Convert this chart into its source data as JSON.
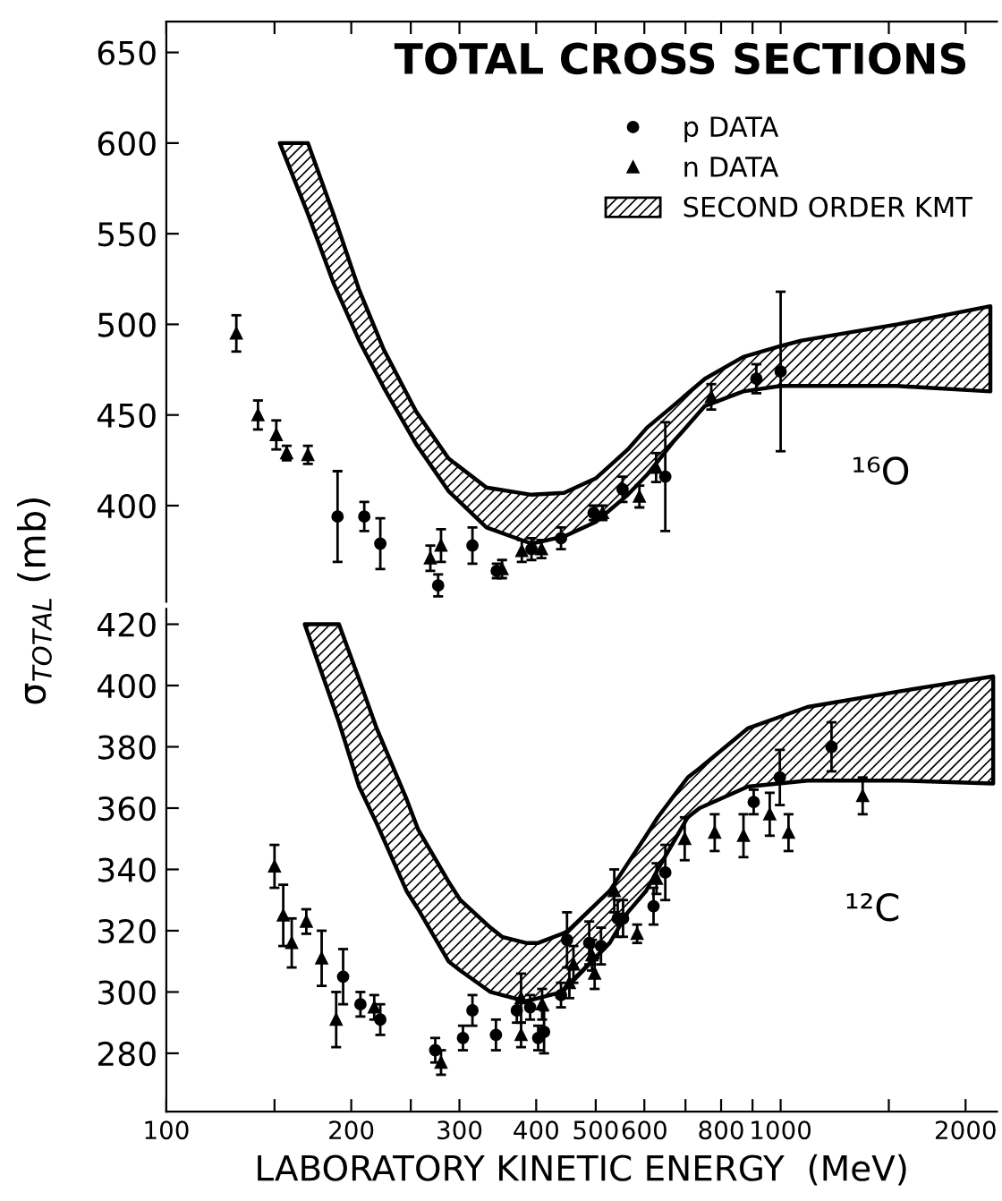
{
  "chart_data": [
    {
      "type": "scatter",
      "title": "TOTAL CROSS SECTIONS",
      "ylabel": "σ$_{TOTAL}$ (mb)",
      "annotations": [
        "¹⁶O"
      ],
      "log": "x",
      "tick_labels": "y",
      "legend": "top right",
      "xlim": [
        100,
        2250
      ],
      "xticks": [
        100,
        {
          "value": 150,
          "label": null
        },
        200,
        {
          "value": 250,
          "label": null
        },
        300,
        400,
        500,
        600,
        {
          "value": 700,
          "label": null
        },
        800,
        {
          "value": 900,
          "label": null
        },
        1000,
        {
          "value": 1500,
          "label": null
        },
        2000
      ],
      "ylim": [
        347,
        667
      ],
      "yticks": [
        400,
        450,
        500,
        550,
        600,
        650
      ],
      "series": [
        {
          "name": "p DATA",
          "type": "scatter",
          "marker": "circle",
          "color": "#000000",
          "x": [
            190,
            210,
            223,
            277,
            315,
            345,
            393,
            439,
            496,
            553,
            649,
            913,
            1000
          ],
          "values": [
            394,
            394,
            379,
            356,
            378,
            364,
            376,
            382,
            396,
            409,
            416,
            470,
            474
          ],
          "errors": [
            25,
            8,
            14,
            6,
            10,
            4,
            6,
            6,
            4,
            7,
            30,
            8,
            44
          ]
        },
        {
          "name": "n DATA",
          "type": "scatter",
          "marker": "triangle",
          "color": "#000000",
          "x": [
            130,
            141,
            151,
            157,
            170,
            269,
            280,
            352,
            379,
            408,
            513,
            589,
            627,
            771
          ],
          "values": [
            495,
            450,
            439,
            429,
            428,
            371,
            378,
            365,
            375,
            376,
            396,
            405,
            421,
            460
          ],
          "errors": [
            10,
            8,
            8,
            4,
            5,
            7,
            9,
            5,
            6,
            5,
            4,
            6,
            8,
            7
          ]
        },
        {
          "name": "SECOND ORDER KMT",
          "type": "area",
          "color": "#000000",
          "x": [
            153,
            170,
            187,
            206,
            226,
            255,
            288,
            332,
            393,
            444,
            500,
            564,
            606,
            668,
            753,
            869,
            1000,
            1080,
            1550,
            2195
          ],
          "values": [
            null,
            null,
            null,
            null,
            null,
            null,
            null,
            null,
            null,
            null,
            null,
            null,
            null,
            null,
            null,
            null,
            null,
            null,
            null,
            null
          ],
          "lower": [
            600,
            561,
            523,
            491,
            465,
            434,
            408,
            388,
            379,
            383,
            391,
            406,
            417,
            435,
            455,
            463,
            466,
            466,
            466,
            463
          ],
          "upper": [
            600,
            600,
            561,
            519,
            486,
            452,
            426,
            410,
            406,
            407,
            415,
            431,
            443,
            455,
            470,
            482,
            488,
            491,
            500,
            510
          ]
        }
      ]
    },
    {
      "type": "scatter",
      "xlabel": "LABORATORY KINETIC ENERGY  (MeV)",
      "annotations": [
        "¹²C"
      ],
      "log": "x",
      "xlim": [
        100,
        2250
      ],
      "xticks": [
        100,
        {
          "value": 150,
          "label": null
        },
        200,
        {
          "value": 250,
          "label": null
        },
        300,
        400,
        500,
        600,
        {
          "value": 700,
          "label": null
        },
        800,
        {
          "value": 900,
          "label": null
        },
        1000,
        {
          "value": 1500,
          "label": null
        },
        2000
      ],
      "ylim": [
        261,
        425
      ],
      "yticks": [
        280,
        300,
        320,
        340,
        360,
        380,
        400,
        420
      ],
      "series": [
        {
          "type": "scatter",
          "marker": "circle",
          "color": "#000000",
          "x": [
            194,
            207,
            223,
            274,
            304,
            315,
            344,
            372,
            391,
            403,
            412,
            439,
            449,
            488,
            510,
            543,
            554,
            621,
            649,
            904,
            997,
            1210
          ],
          "values": [
            305,
            296,
            291,
            281,
            285,
            294,
            286,
            294,
            295,
            285,
            287,
            299,
            317,
            316,
            315,
            324,
            324,
            328,
            339,
            362,
            370,
            380
          ],
          "errors": [
            9,
            4,
            5,
            4,
            4,
            5,
            5,
            4,
            4,
            4,
            7,
            4,
            9,
            7,
            6,
            6,
            6,
            6,
            9,
            4,
            9,
            8
          ]
        },
        {
          "type": "scatter",
          "marker": "triangle",
          "color": "#000000",
          "x": [
            150,
            155,
            160,
            169,
            179,
            189,
            218,
            280,
            378,
            378,
            409,
            453,
            460,
            493,
            498,
            536,
            584,
            628,
            698,
            781,
            870,
            960,
            1030,
            1360
          ],
          "values": [
            341,
            325,
            316,
            323,
            311,
            291,
            295,
            277,
            298,
            286,
            296,
            303,
            309,
            312,
            306,
            333,
            319,
            337,
            350,
            352,
            351,
            358,
            352,
            364
          ],
          "errors": [
            7,
            10,
            8,
            4,
            9,
            9,
            4,
            4,
            8,
            4,
            5,
            5,
            6,
            5,
            5,
            7,
            3,
            5,
            7,
            6,
            7,
            7,
            6,
            6
          ]
        },
        {
          "type": "area",
          "color": "#000000",
          "x": [
            168,
            191,
            206,
            220,
            246,
            257,
            288,
            301,
            337,
            352,
            385,
            403,
            441,
            451,
            527,
            564,
            604,
            631,
            706,
            738,
            884,
            1106,
            1550,
            2218
          ],
          "values": [
            null,
            null,
            null,
            null,
            null,
            null,
            null,
            null,
            null,
            null,
            null,
            null,
            null,
            null,
            null,
            null,
            null,
            null,
            null,
            null,
            null,
            null,
            null,
            null
          ],
          "lower": [
            420,
            388,
            367,
            355,
            333,
            327,
            310,
            307,
            300,
            299,
            297,
            298,
            300,
            302,
            316,
            326,
            333,
            340,
            357,
            360,
            367,
            369,
            369,
            368
          ],
          "upper": [
            420,
            420,
            402,
            386,
            363,
            353,
            336,
            330,
            321,
            318,
            316,
            316,
            319,
            320,
            333,
            342,
            351,
            357,
            370,
            373,
            386,
            393,
            398,
            403
          ]
        }
      ]
    }
  ]
}
